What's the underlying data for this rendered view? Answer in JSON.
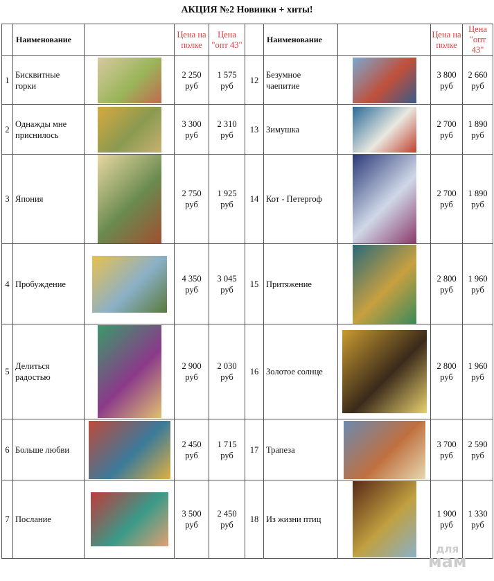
{
  "title": "АКЦИЯ №2 Новинки + хиты!",
  "header": {
    "name": "Наименование",
    "price_shelf": "Цена на полке",
    "price_opt": "Цена \"опт 43\""
  },
  "currency": "руб",
  "rows": [
    {
      "left": {
        "num": "1",
        "name": "Бисквитные горки",
        "shelf": "2 250",
        "opt": "1 575",
        "colors": [
          "#d8c8a0",
          "#9ab65a",
          "#c06a50"
        ]
      },
      "right": {
        "num": "12",
        "name": "Безумное чаепитие",
        "shelf": "3 800",
        "opt": "2 660",
        "colors": [
          "#7aa8d0",
          "#c0503a",
          "#3a5a8a"
        ]
      }
    },
    {
      "left": {
        "num": "2",
        "name": "Однажды мне приснилось",
        "shelf": "3 300",
        "opt": "2 310",
        "colors": [
          "#d8a840",
          "#8a9a50",
          "#c8b070"
        ]
      },
      "right": {
        "num": "13",
        "name": "Зимушка",
        "shelf": "2 700",
        "opt": "1 890",
        "colors": [
          "#2a6a9a",
          "#e8e8e0",
          "#c04030"
        ]
      }
    },
    {
      "left": {
        "num": "3",
        "name": "Япония",
        "shelf": "2 750",
        "opt": "1 925",
        "colors": [
          "#e8d8a0",
          "#6a8a50",
          "#a05030"
        ]
      },
      "right": {
        "num": "14",
        "name": "Кот - Петергоф",
        "shelf": "2 700",
        "opt": "1 890",
        "colors": [
          "#2a3a7a",
          "#d0d8e8",
          "#8a3a6a"
        ]
      }
    },
    {
      "left": {
        "num": "4",
        "name": "Пробуждение",
        "shelf": "4 350",
        "opt": "3 045",
        "colors": [
          "#e8c050",
          "#8ab0c8",
          "#5a7a3a"
        ]
      },
      "right": {
        "num": "15",
        "name": "Притяжение",
        "shelf": "2 800",
        "opt": "1 960",
        "colors": [
          "#2a6a7a",
          "#c8a040",
          "#3a8a5a"
        ]
      }
    },
    {
      "left": {
        "num": "5",
        "name": "Делиться радостью",
        "shelf": "2 900",
        "opt": "2 030",
        "colors": [
          "#3a9a6a",
          "#8a3a8a",
          "#e0c070"
        ]
      },
      "right": {
        "num": "16",
        "name": "Золотое солнце",
        "shelf": "2 800",
        "opt": "1 960",
        "colors": [
          "#c89a30",
          "#3a2a1a",
          "#e8d070"
        ]
      }
    },
    {
      "left": {
        "num": "6",
        "name": "Больше любви",
        "shelf": "2 450",
        "opt": "1 715",
        "colors": [
          "#c04a3a",
          "#3a7a9a",
          "#e0b040"
        ]
      },
      "right": {
        "num": "17",
        "name": "Трапеза",
        "shelf": "3 700",
        "opt": "2 590",
        "colors": [
          "#6a8ab0",
          "#c07040",
          "#e8d8b0"
        ]
      }
    },
    {
      "left": {
        "num": "7",
        "name": "Послание",
        "shelf": "3 500",
        "opt": "2 450",
        "colors": [
          "#c03a3a",
          "#3a9a8a",
          "#e0a070"
        ]
      },
      "right": {
        "num": "18",
        "name": "Из жизни птиц",
        "shelf": "1 900",
        "opt": "1 330",
        "colors": [
          "#5a2a1a",
          "#c0a040",
          "#8ab0c8"
        ]
      }
    }
  ],
  "watermark": {
    "line1": "для",
    "line2": "мам"
  }
}
